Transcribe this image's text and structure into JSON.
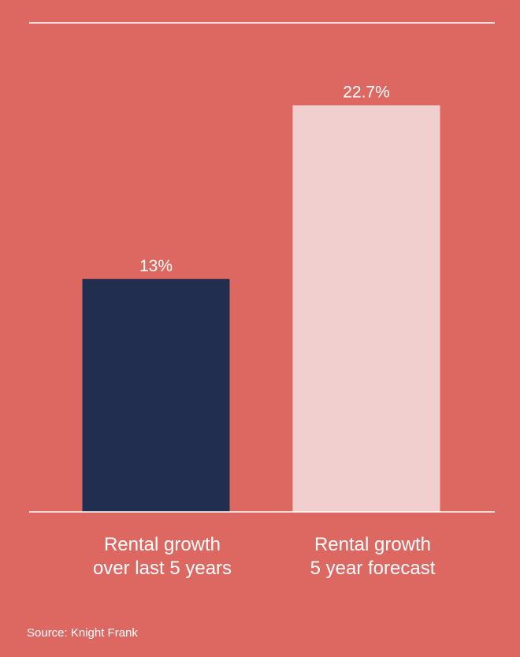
{
  "chart_data": {
    "type": "bar",
    "categories": [
      [
        "Rental growth",
        "over last 5 years"
      ],
      [
        "Rental growth",
        "5 year forecast"
      ]
    ],
    "values": [
      13,
      22.7
    ],
    "value_labels": [
      "13%",
      "22.7%"
    ],
    "bar_colors": [
      "#222e4f",
      "#f2cfcf"
    ],
    "ylim": [
      0,
      27.3
    ],
    "grid": false
  },
  "source": "Source: Knight Frank",
  "colors": {
    "background": "#dd6862",
    "rule": "#ffffff",
    "text": "#ffffff"
  }
}
